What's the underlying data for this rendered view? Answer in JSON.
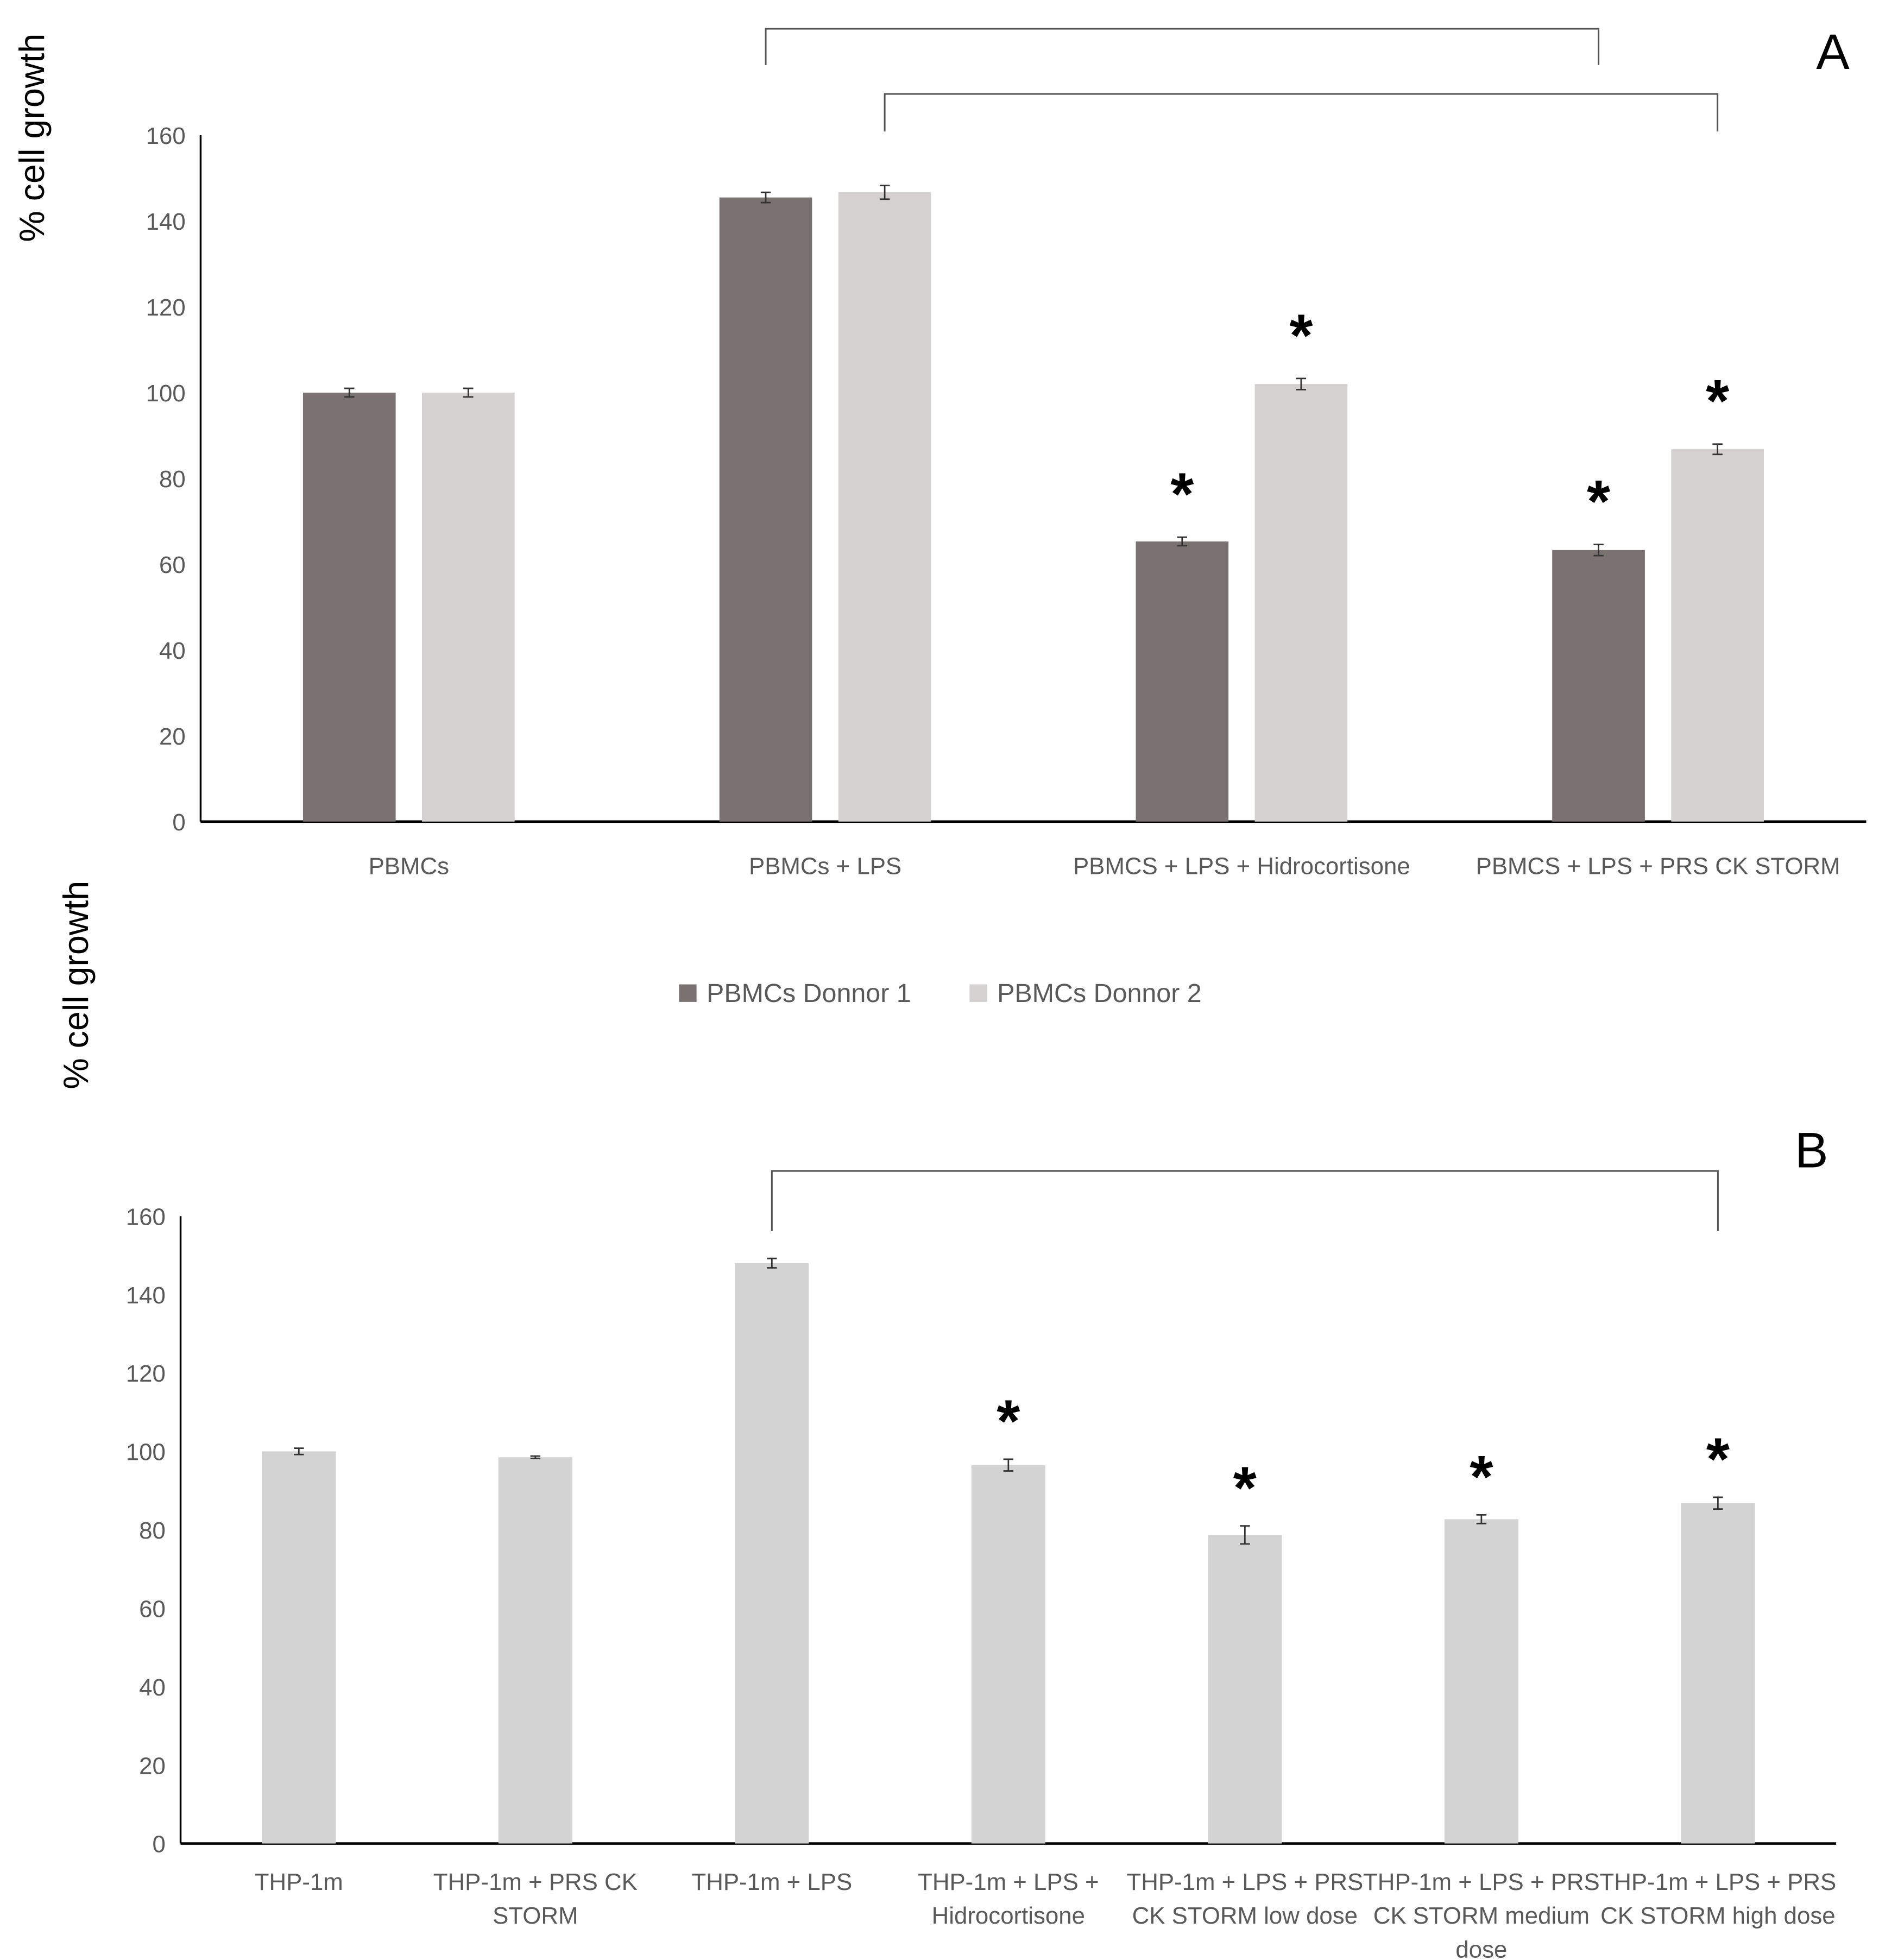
{
  "chart_data": [
    {
      "type": "bar",
      "panel_label": "A",
      "ylabel": "% cell growth",
      "xlabel": "",
      "ylim": [
        0,
        160
      ],
      "yticks": [
        0,
        20,
        40,
        60,
        80,
        100,
        120,
        140,
        160
      ],
      "grid": false,
      "legend_position": "bottom",
      "categories": [
        "PBMCs",
        "PBMCs + LPS",
        "PBMCS + LPS + Hidrocortisone",
        "PBMCS + LPS + PRS CK STORM"
      ],
      "series": [
        {
          "name": "PBMCs Donnor 1",
          "color": "#7a7171",
          "values": [
            100,
            145.5,
            65.3,
            63.3
          ],
          "errors": [
            1,
            1.2,
            1,
            1.3
          ],
          "significant": [
            false,
            false,
            true,
            true
          ]
        },
        {
          "name": "PBMCs Donnor 2",
          "color": "#d5d1d1",
          "values": [
            100,
            146.7,
            102,
            86.8
          ],
          "errors": [
            1,
            1.6,
            1.3,
            1.2
          ],
          "significant": [
            false,
            false,
            true,
            true
          ]
        }
      ],
      "brackets": [
        {
          "from": [
            1,
            0
          ],
          "to": [
            3,
            0
          ]
        },
        {
          "from": [
            1,
            1
          ],
          "to": [
            3,
            1
          ]
        }
      ],
      "significance_marker": "*"
    },
    {
      "type": "bar",
      "panel_label": "B",
      "ylabel": "% cell growth",
      "xlabel": "",
      "ylim": [
        0,
        160
      ],
      "yticks": [
        0,
        20,
        40,
        60,
        80,
        100,
        120,
        140,
        160
      ],
      "grid": false,
      "categories": [
        [
          "THP-1m"
        ],
        [
          "THP-1m + PRS CK",
          "STORM"
        ],
        [
          "THP-1m + LPS"
        ],
        [
          "THP-1m + LPS +",
          "Hidrocortisone"
        ],
        [
          "THP-1m + LPS + PRS",
          "CK STORM low dose"
        ],
        [
          "THP-1m + LPS + PRS",
          "CK STORM medium",
          "dose"
        ],
        [
          "THP-1m + LPS + PRS",
          "CK STORM high dose"
        ]
      ],
      "series": [
        {
          "name": "",
          "color": "#d3d3d3",
          "values": [
            100,
            98.5,
            148,
            96.5,
            78.7,
            82.7,
            86.8
          ],
          "errors": [
            0.8,
            0.3,
            1.2,
            1.5,
            2.3,
            1.1,
            1.5
          ],
          "significant": [
            false,
            false,
            false,
            true,
            true,
            true,
            true
          ]
        }
      ],
      "brackets": [
        {
          "from": [
            2,
            0
          ],
          "to": [
            6,
            0
          ]
        }
      ],
      "significance_marker": "*"
    }
  ]
}
